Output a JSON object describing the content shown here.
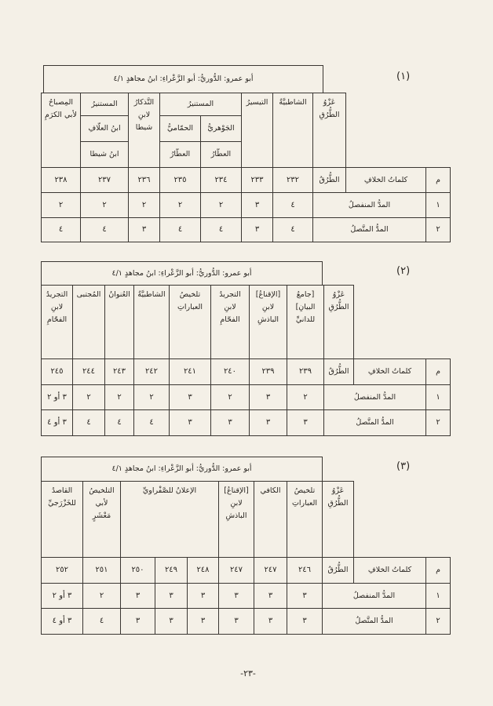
{
  "tables": [
    {
      "label": "(١)",
      "title": "أبو عمرو: الدُّوريُّ: أبو الزَّعْراءِ: ابنُ مجاهدٍ ٤/١",
      "headers": [
        "عَزْوُ\nالطُّرُقِ",
        "الشاطبيَّةُ",
        "التيسيرُ",
        "المستنيرُ",
        "الجَوْهريُّ",
        "الحمّاميُّ",
        "العطّارُ",
        "العطّارُ",
        "التَّذكارُ\nلابنِ\nشيطا",
        "المستنيرُ",
        "ابنُ العلّافِ",
        "ابنُ شيطا",
        "المِصباحُ\nلأبي الكرَمِ"
      ],
      "col_m": "م",
      "col_words": "كلماتُ الخلافِ",
      "col_turuq": "الطُّرُقُ",
      "numbers": [
        "٢٣٢",
        "٢٣٣",
        "٢٣٤",
        "٢٣٥",
        "٢٣٦",
        "٢٣٧",
        "٢٣٨"
      ],
      "rows": [
        {
          "m": "١",
          "word": "المدُّ المنفصلُ",
          "values": [
            "٤",
            "٣",
            "٢",
            "٢",
            "٢",
            "٢",
            "٢"
          ]
        },
        {
          "m": "٢",
          "word": "المدُّ المتَّصلُ",
          "values": [
            "٤",
            "٣",
            "٤",
            "٤",
            "٣",
            "٤",
            "٤"
          ]
        }
      ]
    },
    {
      "label": "(٢)",
      "title": "أبو عمرو: الدُّوريُّ: أبو الزَّعْراءِ: ابنُ مجاهدٍ ٤/١",
      "headers": [
        "عَزْوُ\nالطُّرُقِ",
        "[جامعُ\nالبيانِ]\nللدانيِّ",
        "[الإقناعُ]\nلابنِ\nالباذشِ",
        "التجريدُ\nلابنِ\nالفحّامِ",
        "تلخيصُ\nالعباراتِ",
        "الشاطبيَّةُ",
        "العُنوانُ",
        "المُجتبى",
        "التجريدُ\nلابنِ\nالفحّامِ"
      ],
      "col_m": "م",
      "col_words": "كلماتُ الخلافِ",
      "col_turuq": "الطُّرُقُ",
      "numbers": [
        "٢٣٩",
        "٢٣٩",
        "٢٤٠",
        "٢٤١",
        "٢٤٢",
        "٢٤٣",
        "٢٤٤",
        "٢٤٥"
      ],
      "rows": [
        {
          "m": "١",
          "word": "المدُّ المنفصلُ",
          "values": [
            "٢",
            "٣",
            "٢",
            "٣",
            "٢",
            "٢",
            "٢",
            "٣ أو ٢"
          ]
        },
        {
          "m": "٢",
          "word": "المدُّ المتَّصلُ",
          "values": [
            "٣",
            "٣",
            "٣",
            "٣",
            "٤",
            "٤",
            "٤",
            "٣ أو ٤"
          ]
        }
      ]
    },
    {
      "label": "(٣)",
      "title": "أبو عمرو: الدُّوريُّ: أبو الزَّعْراءِ: ابنُ مجاهدٍ ٤/١",
      "headers": [
        "عَزْوُ\nالطُّرُقِ",
        "تلخيصُ\nالعباراتِ",
        "الكافي",
        "[الإقناعُ]\nلابنِ\nالباذشِ",
        "الإعلانُ للصَّفْراويِّ",
        "التلخيصُ\nلأبي\nمَعْشَرٍ",
        "القاصدُ\nللخَزْرَجيِّ"
      ],
      "col_m": "م",
      "col_words": "كلماتُ الخلافِ",
      "col_turuq": "الطُّرُقُ",
      "numbers": [
        "٢٤٦",
        "٢٤٧",
        "٢٤٧",
        "٢٤٨",
        "٢٤٩",
        "٢٥٠",
        "٢٥١",
        "٢٥٢"
      ],
      "rows": [
        {
          "m": "١",
          "word": "المدُّ المنفصلُ",
          "values": [
            "٣",
            "٣",
            "٣",
            "٣",
            "٣",
            "٣",
            "٢",
            "٣ أو ٢"
          ]
        },
        {
          "m": "٢",
          "word": "المدُّ المتَّصلُ",
          "values": [
            "٣",
            "٣",
            "٣",
            "٣",
            "٣",
            "٣",
            "٤",
            "٣ أو ٤"
          ]
        }
      ]
    }
  ],
  "page_number": "-٢٣-"
}
